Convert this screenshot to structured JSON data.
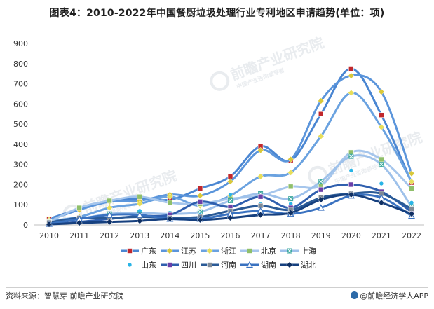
{
  "header": {
    "title": "图表4：2010-2022年中国餐厨垃圾处理行业专利地区申请趋势(单位：项)"
  },
  "footer": {
    "source": "资料来源：智慧芽 前瞻产业研究院",
    "brand": "@前瞻经济学人APP"
  },
  "watermark": {
    "text": "前瞻产业研究院",
    "sub": "中国产业咨询领导者"
  },
  "chart_data": {
    "type": "line",
    "title": "图表4：2010-2022年中国餐厨垃圾处理行业专利地区申请趋势(单位：项)",
    "x": [
      "2010",
      "2011",
      "2012",
      "2013",
      "2014",
      "2015",
      "2016",
      "2017",
      "2018",
      "2019",
      "2020",
      "2021",
      "2022"
    ],
    "ylim": [
      0,
      900
    ],
    "yticks": [
      0,
      100,
      200,
      300,
      400,
      500,
      600,
      700,
      800,
      900
    ],
    "grid": false,
    "legend_position": "bottom",
    "xlabel": "",
    "ylabel": "",
    "series": [
      {
        "name": "广东",
        "color": "#4a86d2",
        "marker": "square",
        "marker_color": "#c0282d",
        "values": [
          30,
          80,
          120,
          130,
          125,
          180,
          240,
          390,
          320,
          550,
          775,
          545,
          210
        ]
      },
      {
        "name": "江苏",
        "color": "#5b95db",
        "marker": "diamond",
        "marker_color": "#d9c83a",
        "values": [
          25,
          75,
          115,
          120,
          150,
          145,
          215,
          370,
          325,
          615,
          740,
          660,
          255
        ]
      },
      {
        "name": "浙江",
        "color": "#6aa2e0",
        "marker": "diamond",
        "marker_color": "#e7de5a",
        "values": [
          20,
          40,
          85,
          105,
          140,
          95,
          145,
          240,
          260,
          440,
          655,
          485,
          215
        ]
      },
      {
        "name": "北京",
        "color": "#a6c6ec",
        "marker": "square",
        "marker_color": "#8fbf6a",
        "values": [
          15,
          85,
          120,
          140,
          110,
          105,
          130,
          145,
          190,
          195,
          360,
          325,
          180
        ]
      },
      {
        "name": "上海",
        "color": "#9ec1ea",
        "marker": "square-x",
        "marker_color": "#3fa9a0",
        "values": [
          10,
          30,
          55,
          60,
          55,
          65,
          120,
          155,
          130,
          215,
          340,
          300,
          90
        ]
      },
      {
        "name": "山东",
        "color": "none",
        "marker": "circle",
        "marker_color": "#29b4e6",
        "values": [
          8,
          20,
          35,
          70,
          60,
          50,
          150,
          105,
          105,
          125,
          270,
          205,
          110
        ]
      },
      {
        "name": "四川",
        "color": "#2f5fae",
        "marker": "square",
        "marker_color": "#6a3fa8",
        "values": [
          5,
          15,
          30,
          45,
          50,
          115,
          90,
          140,
          85,
          175,
          200,
          165,
          65
        ]
      },
      {
        "name": "河南",
        "color": "#2a5a96",
        "marker": "square",
        "marker_color": "#7f8a96",
        "values": [
          12,
          35,
          35,
          40,
          35,
          40,
          70,
          95,
          75,
          135,
          155,
          155,
          80
        ]
      },
      {
        "name": "湖南",
        "color": "#3a72c0",
        "marker": "triangle",
        "marker_color": "#3a72c0",
        "values": [
          5,
          30,
          50,
          50,
          30,
          30,
          55,
          70,
          55,
          85,
          145,
          135,
          45
        ]
      },
      {
        "name": "湖北",
        "color": "#16407f",
        "marker": "diamond",
        "marker_color": "#0e2f63",
        "values": [
          3,
          10,
          15,
          20,
          30,
          25,
          35,
          50,
          60,
          125,
          150,
          110,
          55
        ]
      }
    ]
  }
}
